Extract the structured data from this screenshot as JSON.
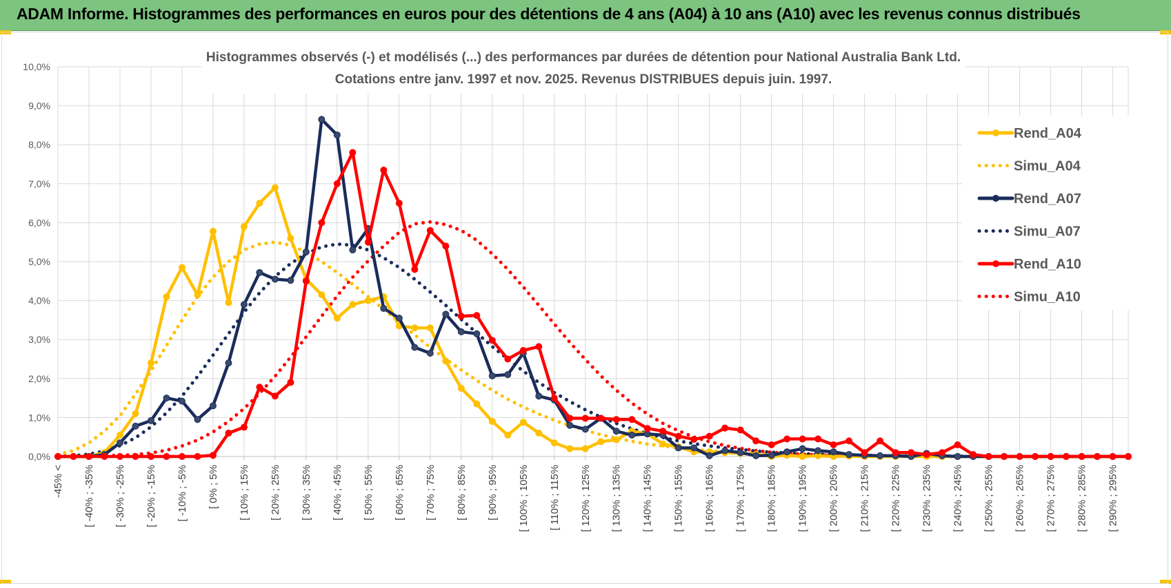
{
  "banner": {
    "title": "ADAM Informe. Histogrammes des performances en euros pour des détentions de 4 ans (A04) à 10 ans (A10) avec les revenus connus distribués",
    "background": "#7cc47f"
  },
  "chart_data": {
    "type": "line",
    "title_line1": "Histogrammes observés (-) et modélisés (...) des performances par durées de détention pour National Australia Bank Ltd.",
    "title_line2": "Cotations entre janv. 1997 et nov. 2025. Revenus DISTRIBUES depuis juin. 1997.",
    "xlabel": "",
    "ylabel": "",
    "ylim": [
      0,
      10
    ],
    "y_ticks": [
      "0,0%",
      "1,0%",
      "2,0%",
      "3,0%",
      "4,0%",
      "5,0%",
      "6,0%",
      "7,0%",
      "8,0%",
      "9,0%",
      "10,0%"
    ],
    "grid": true,
    "legend_position": "right",
    "x_tick_labels": [
      "-45% <",
      "[ -40% ; -35%",
      "[ -30% ; -25%",
      "[ -20% ; -15%",
      "[ -10% ; -5%",
      "[ 0% ; 5%",
      "[ 10% ; 15%",
      "[ 20% ; 25%",
      "[ 30% ; 35%",
      "[ 40% ; 45%",
      "[ 50% ; 55%",
      "[ 60% ; 65%",
      "[ 70% ; 75%",
      "[ 80% ; 85%",
      "[ 90% ; 95%",
      "[ 100% ; 105%",
      "[ 110% ; 115%",
      "[ 120% ; 125%",
      "[ 130% ; 135%",
      "[ 140% ; 145%",
      "[ 150% ; 155%",
      "[ 160% ; 165%",
      "[ 170% ; 175%",
      "[ 180% ; 185%",
      "[ 190% ; 195%",
      "[ 200% ; 205%",
      "[ 210% ; 215%",
      "[ 220% ; 225%",
      "[ 230% ; 235%",
      "[ 240% ; 245%",
      "[ 250% ; 255%",
      "[ 260% ; 265%",
      "[ 270% ; 275%",
      "[ 280% ; 285%",
      "[ 290% ; 295%"
    ],
    "bin_count": 70,
    "series": [
      {
        "name": "Rend_A04",
        "color": "#ffc000",
        "style": "solid",
        "markers": true,
        "values": [
          0,
          0,
          0,
          0.1,
          0.55,
          1.1,
          2.4,
          4.1,
          4.85,
          4.15,
          5.78,
          3.95,
          5.9,
          6.5,
          6.9,
          5.6,
          4.55,
          4.15,
          3.55,
          3.9,
          4.0,
          4.1,
          3.35,
          3.3,
          3.3,
          2.45,
          1.75,
          1.35,
          0.9,
          0.55,
          0.88,
          0.6,
          0.35,
          0.2,
          0.2,
          0.38,
          0.43,
          0.65,
          0.58,
          0.32,
          0.25,
          0.12,
          0.12,
          0.1,
          0.08,
          0.05,
          0,
          0.03,
          0,
          0.02,
          0,
          0.01,
          0,
          0,
          0,
          0,
          0,
          0,
          0,
          0,
          0,
          0,
          0,
          0,
          0,
          0,
          0,
          0,
          0,
          0
        ]
      },
      {
        "name": "Simu_A04",
        "color": "#ffc000",
        "style": "dotted",
        "markers": false,
        "values": [
          0.05,
          0.15,
          0.35,
          0.65,
          1.05,
          1.6,
          2.2,
          2.85,
          3.5,
          4.1,
          4.6,
          5.0,
          5.3,
          5.45,
          5.5,
          5.42,
          5.25,
          5.0,
          4.72,
          4.42,
          4.1,
          3.78,
          3.45,
          3.12,
          2.8,
          2.5,
          2.22,
          1.95,
          1.7,
          1.47,
          1.27,
          1.09,
          0.93,
          0.79,
          0.67,
          0.56,
          0.47,
          0.39,
          0.32,
          0.27,
          0.22,
          0.18,
          0.15,
          0.12,
          0.1,
          0.08,
          0.06,
          0.05,
          0.04,
          0.03,
          0.03,
          0.02,
          0.02,
          0.01,
          0.01,
          0.01,
          0.01,
          0,
          0,
          0,
          0,
          0,
          0,
          0,
          0,
          0,
          0,
          0,
          0,
          0
        ]
      },
      {
        "name": "Rend_A07",
        "color": "#1a2c5b",
        "style": "solid",
        "markers": true,
        "values": [
          0,
          0,
          0,
          0.05,
          0.35,
          0.78,
          0.92,
          1.5,
          1.42,
          0.95,
          1.3,
          2.4,
          3.9,
          4.72,
          4.55,
          4.52,
          5.25,
          8.65,
          8.25,
          5.3,
          5.85,
          3.8,
          3.55,
          2.8,
          2.65,
          3.65,
          3.2,
          3.15,
          2.07,
          2.1,
          2.65,
          1.55,
          1.45,
          0.8,
          0.7,
          0.98,
          0.65,
          0.55,
          0.58,
          0.55,
          0.22,
          0.22,
          0.02,
          0.15,
          0.1,
          0.02,
          0.03,
          0.12,
          0.2,
          0.15,
          0.12,
          0.05,
          0.03,
          0.02,
          0.02,
          0.0,
          0.08,
          0.02,
          0.0,
          0,
          0,
          0,
          0,
          0,
          0,
          0,
          0,
          0,
          0,
          0
        ]
      },
      {
        "name": "Simu_A07",
        "color": "#1a2c5b",
        "style": "dotted",
        "markers": false,
        "values": [
          0,
          0.02,
          0.06,
          0.14,
          0.28,
          0.48,
          0.76,
          1.12,
          1.55,
          2.05,
          2.6,
          3.15,
          3.7,
          4.2,
          4.62,
          4.95,
          5.2,
          5.38,
          5.45,
          5.42,
          5.3,
          5.1,
          4.85,
          4.55,
          4.22,
          3.88,
          3.52,
          3.17,
          2.82,
          2.5,
          2.19,
          1.9,
          1.64,
          1.41,
          1.2,
          1.01,
          0.85,
          0.71,
          0.59,
          0.49,
          0.4,
          0.33,
          0.27,
          0.22,
          0.18,
          0.14,
          0.11,
          0.09,
          0.07,
          0.06,
          0.05,
          0.04,
          0.03,
          0.02,
          0.02,
          0.01,
          0.01,
          0.01,
          0.01,
          0,
          0,
          0,
          0,
          0,
          0,
          0,
          0,
          0,
          0,
          0
        ]
      },
      {
        "name": "Rend_A10",
        "color": "#ff0000",
        "style": "solid",
        "markers": true,
        "values": [
          0,
          0,
          0,
          0,
          0,
          0,
          0,
          0,
          0,
          0,
          0.03,
          0.6,
          0.75,
          1.78,
          1.55,
          1.9,
          4.5,
          6.0,
          7.0,
          7.8,
          5.5,
          7.35,
          6.5,
          4.8,
          5.8,
          5.4,
          3.6,
          3.62,
          2.98,
          2.5,
          2.72,
          2.82,
          1.5,
          0.98,
          0.98,
          0.98,
          0.95,
          0.95,
          0.72,
          0.65,
          0.52,
          0.44,
          0.52,
          0.73,
          0.68,
          0.4,
          0.3,
          0.45,
          0.45,
          0.45,
          0.3,
          0.4,
          0.1,
          0.4,
          0.1,
          0.1,
          0.05,
          0.1,
          0.3,
          0.05,
          0,
          0,
          0,
          0,
          0,
          0,
          0,
          0,
          0,
          0
        ]
      },
      {
        "name": "Simu_A10",
        "color": "#ff0000",
        "style": "dotted",
        "markers": false,
        "values": [
          0,
          0,
          0.01,
          0.02,
          0.03,
          0.05,
          0.09,
          0.16,
          0.27,
          0.42,
          0.63,
          0.9,
          1.23,
          1.62,
          2.06,
          2.55,
          3.07,
          3.6,
          4.12,
          4.6,
          5.02,
          5.4,
          5.75,
          5.97,
          6.02,
          5.95,
          5.8,
          5.55,
          5.2,
          4.8,
          4.35,
          3.88,
          3.4,
          2.93,
          2.49,
          2.07,
          1.7,
          1.37,
          1.09,
          0.85,
          0.66,
          0.5,
          0.38,
          0.28,
          0.21,
          0.15,
          0.11,
          0.08,
          0.06,
          0.04,
          0.03,
          0.02,
          0.01,
          0.01,
          0.01,
          0,
          0,
          0,
          0,
          0,
          0,
          0,
          0,
          0,
          0,
          0,
          0,
          0,
          0,
          0
        ]
      }
    ]
  }
}
